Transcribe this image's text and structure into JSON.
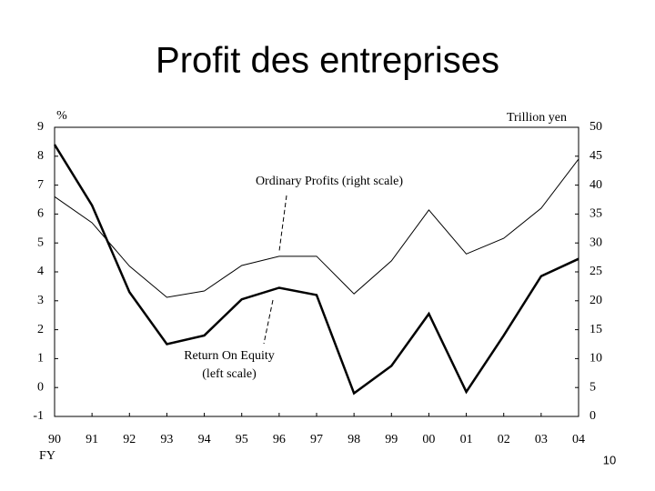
{
  "chart_data": {
    "type": "line",
    "title": "Profit des entreprises",
    "categories": [
      "90",
      "91",
      "92",
      "93",
      "94",
      "95",
      "96",
      "97",
      "98",
      "99",
      "00",
      "01",
      "02",
      "03",
      "04"
    ],
    "x_label": "FY",
    "y_label": "%",
    "y2_label": "Trillion yen",
    "ylim": [
      -1,
      9
    ],
    "yticks": [
      -1,
      0,
      1,
      2,
      3,
      4,
      5,
      6,
      7,
      8,
      9
    ],
    "y2lim": [
      0,
      50
    ],
    "y2ticks": [
      0,
      5,
      10,
      15,
      20,
      25,
      30,
      35,
      40,
      45,
      50
    ],
    "series": [
      {
        "name": "Return On Equity",
        "color": "#000000",
        "axis": "y",
        "values": [
          8.4,
          6.3,
          3.3,
          1.5,
          1.8,
          3.05,
          3.45,
          3.2,
          -0.2,
          0.75,
          2.55,
          -0.15,
          1.8,
          3.85,
          4.45
        ]
      },
      {
        "name": "Ordinary Profits",
        "color": "#000000",
        "axis": "y2",
        "values": [
          38,
          33.5,
          26,
          20.6,
          21.7,
          26.1,
          27.7,
          27.7,
          21.2,
          26.9,
          35.7,
          28.1,
          30.8,
          36,
          44.5
        ]
      }
    ],
    "annotations": [
      "Ordinary Profits (right scale)",
      "Return On Equity",
      "(left scale)"
    ]
  },
  "slide": {
    "page_number": "10"
  }
}
